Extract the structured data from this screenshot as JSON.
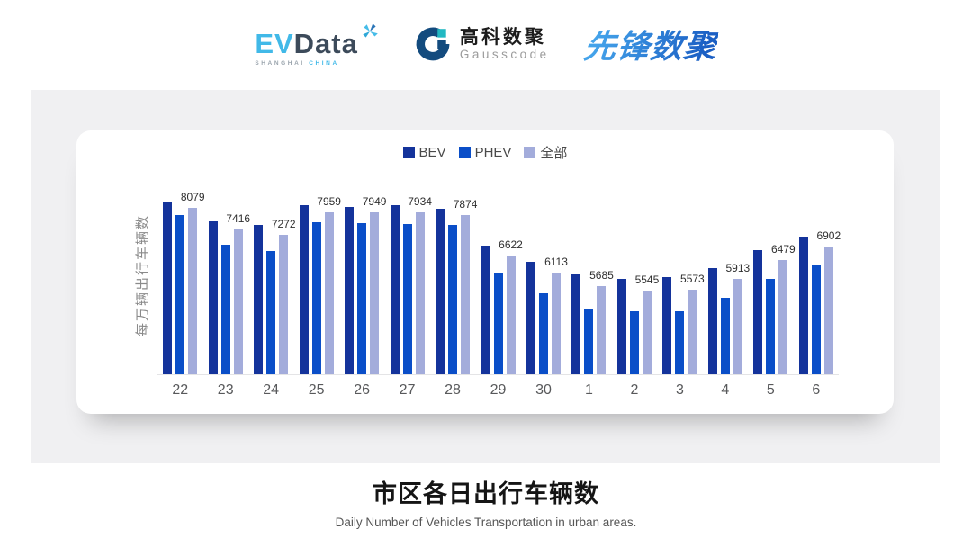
{
  "header": {
    "evdata": {
      "part_blue": "EV",
      "part_dark": "Data",
      "sub_left": "SHANGHAI",
      "sub_right": "CHINA"
    },
    "gausscode": {
      "name_cn": "高科数聚",
      "name_en": "Gausscode"
    },
    "xianfeng": {
      "name": "先锋数聚"
    }
  },
  "colors": {
    "panel_bg": "#F0F0F2",
    "card_bg": "#FFFFFF",
    "bev": "#14339B",
    "phev": "#0A4EC8",
    "all": "#A3ACDB",
    "evdata_blue": "#41B9E8",
    "evdata_dark": "#3C4A5A",
    "gausscode_navy": "#134B7E",
    "gausscode_teal": "#22B8C2",
    "xianfeng_blue": "#1B5FC4"
  },
  "chart_data": {
    "type": "bar",
    "title": "",
    "ylabel": "每万辆出行车辆数",
    "xlabel": "",
    "categories": [
      "22",
      "23",
      "24",
      "25",
      "26",
      "27",
      "28",
      "29",
      "30",
      "1",
      "2",
      "3",
      "4",
      "5",
      "6"
    ],
    "series": [
      {
        "key": "bev",
        "name": "BEV",
        "color": "#14339B",
        "values": [
          8235,
          7671,
          7573,
          8159,
          8124,
          8164,
          8055,
          6923,
          6422,
          6049,
          5909,
          5956,
          6233,
          6799,
          7211
        ]
      },
      {
        "key": "phev",
        "name": "PHEV",
        "color": "#0A4EC8",
        "values": [
          7871,
          6959,
          6771,
          7639,
          7621,
          7597,
          7554,
          6075,
          5473,
          5017,
          4924,
          4933,
          5346,
          5912,
          6355
        ]
      },
      {
        "key": "all",
        "name": "全部",
        "color": "#A3ACDB",
        "labels_shown": true,
        "values": [
          8079,
          7416,
          7272,
          7959,
          7949,
          7934,
          7874,
          6622,
          6113,
          5685,
          5545,
          5573,
          5913,
          6479,
          6902
        ]
      }
    ],
    "data_labels": [
      8079,
      7416,
      7272,
      7959,
      7949,
      7934,
      7874,
      6622,
      6113,
      5685,
      5545,
      5573,
      5913,
      6479,
      6902
    ],
    "ylim": [
      3000,
      9100
    ],
    "grid": false,
    "legend_position": "top"
  },
  "footer": {
    "title": "市区各日出行车辆数",
    "subtitle": "Daily Number of Vehicles Transportation in urban areas."
  }
}
